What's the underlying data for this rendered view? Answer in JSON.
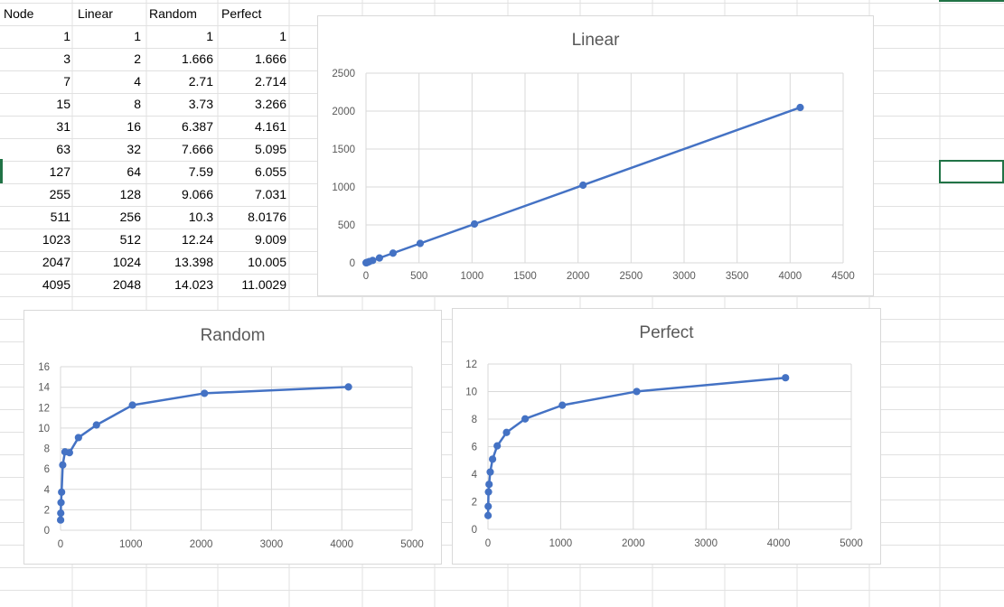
{
  "sheet": {
    "headers": [
      "Node",
      "Linear",
      "Random",
      "Perfect"
    ],
    "rows": [
      [
        "1",
        "1",
        "1",
        "1"
      ],
      [
        "3",
        "2",
        "1.666",
        "1.666"
      ],
      [
        "7",
        "4",
        "2.71",
        "2.714"
      ],
      [
        "15",
        "8",
        "3.73",
        "3.266"
      ],
      [
        "31",
        "16",
        "6.387",
        "4.161"
      ],
      [
        "63",
        "32",
        "7.666",
        "5.095"
      ],
      [
        "127",
        "64",
        "7.59",
        "6.055"
      ],
      [
        "255",
        "128",
        "9.066",
        "7.031"
      ],
      [
        "511",
        "256",
        "10.3",
        "8.0176"
      ],
      [
        "1023",
        "512",
        "12.24",
        "9.009"
      ],
      [
        "2047",
        "1024",
        "13.398",
        "10.005"
      ],
      [
        "4095",
        "2048",
        "14.023",
        "11.0029"
      ]
    ]
  },
  "colors": {
    "series": "#4472c4",
    "gridline": "#d9d9d9",
    "sheet_grid": "#e1e1e1",
    "selection": "#217346",
    "axis_text": "#595959"
  },
  "chart_data": [
    {
      "type": "scatter",
      "title": "Linear",
      "x": [
        1,
        3,
        7,
        15,
        31,
        63,
        127,
        255,
        511,
        1023,
        2047,
        4095
      ],
      "series": [
        {
          "values": [
            1,
            2,
            4,
            8,
            16,
            32,
            64,
            128,
            256,
            512,
            1024,
            2048
          ]
        }
      ],
      "xlim": [
        0,
        4500
      ],
      "ylim": [
        0,
        2500
      ],
      "xticks": [
        0,
        500,
        1000,
        1500,
        2000,
        2500,
        3000,
        3500,
        4000,
        4500
      ],
      "yticks": [
        0,
        500,
        1000,
        1500,
        2000,
        2500
      ],
      "grid": "vertical and horizontal",
      "legend": "none",
      "lines": true
    },
    {
      "type": "scatter",
      "title": "Random",
      "x": [
        1,
        3,
        7,
        15,
        31,
        63,
        127,
        255,
        511,
        1023,
        2047,
        4095
      ],
      "series": [
        {
          "values": [
            1,
            1.666,
            2.71,
            3.73,
            6.387,
            7.666,
            7.59,
            9.066,
            10.3,
            12.24,
            13.398,
            14.023
          ]
        }
      ],
      "xlim": [
        0,
        5000
      ],
      "ylim": [
        0,
        16
      ],
      "xticks": [
        0,
        1000,
        2000,
        3000,
        4000,
        5000
      ],
      "yticks": [
        0,
        2,
        4,
        6,
        8,
        10,
        12,
        14,
        16
      ],
      "grid": "vertical and horizontal",
      "legend": "none",
      "lines": true
    },
    {
      "type": "scatter",
      "title": "Perfect",
      "x": [
        1,
        3,
        7,
        15,
        31,
        63,
        127,
        255,
        511,
        1023,
        2047,
        4095
      ],
      "series": [
        {
          "values": [
            1,
            1.666,
            2.714,
            3.266,
            4.161,
            5.095,
            6.055,
            7.031,
            8.0176,
            9.009,
            10.005,
            11.0029
          ]
        }
      ],
      "xlim": [
        0,
        5000
      ],
      "ylim": [
        0,
        12
      ],
      "xticks": [
        0,
        1000,
        2000,
        3000,
        4000,
        5000
      ],
      "yticks": [
        0,
        2,
        4,
        6,
        8,
        10,
        12
      ],
      "grid": "vertical and horizontal",
      "legend": "none",
      "lines": true
    }
  ]
}
